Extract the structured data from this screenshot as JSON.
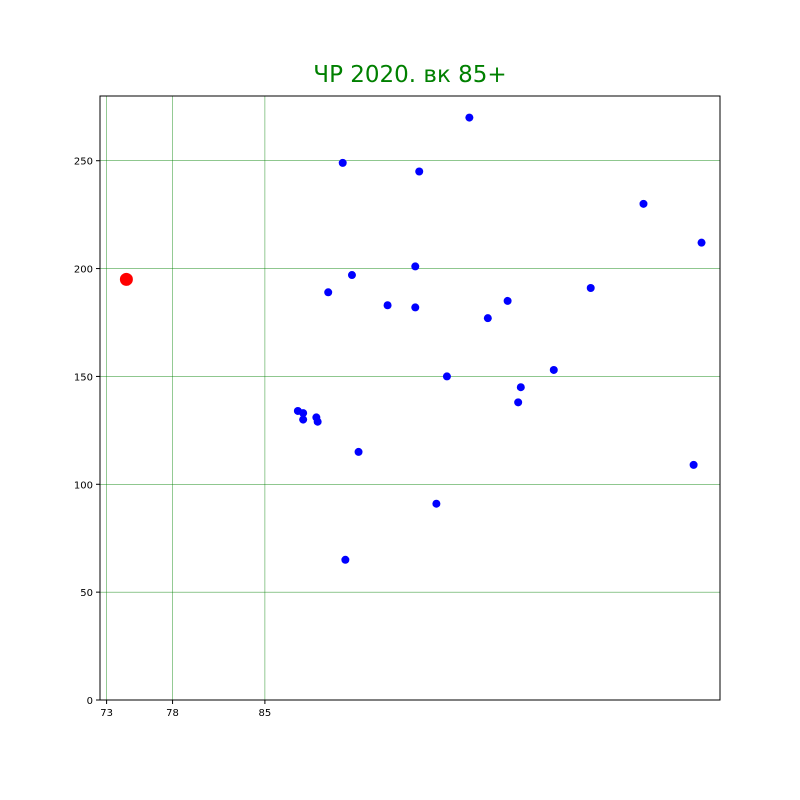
{
  "chart_data": {
    "type": "scatter",
    "title": "ЧР 2020. вк 85+",
    "xlabel": "",
    "ylabel": "",
    "xlim": [
      72.5,
      119.5
    ],
    "ylim": [
      0,
      280
    ],
    "x_ticks": [
      73,
      78,
      85
    ],
    "y_ticks": [
      0,
      50,
      100,
      150,
      200,
      250
    ],
    "grid": true,
    "colors": {
      "title": "#008000",
      "grid": "#008000",
      "series": "#0000ff",
      "highlight": "#ff0000"
    },
    "series": [
      {
        "color": "#0000ff",
        "points": [
          {
            "x": 87.5,
            "y": 134
          },
          {
            "x": 87.9,
            "y": 133
          },
          {
            "x": 87.9,
            "y": 130
          },
          {
            "x": 88.9,
            "y": 131
          },
          {
            "x": 89.0,
            "y": 129
          },
          {
            "x": 89.8,
            "y": 189
          },
          {
            "x": 90.9,
            "y": 249
          },
          {
            "x": 91.1,
            "y": 65
          },
          {
            "x": 91.6,
            "y": 197
          },
          {
            "x": 92.1,
            "y": 115
          },
          {
            "x": 94.3,
            "y": 183
          },
          {
            "x": 96.4,
            "y": 201
          },
          {
            "x": 96.4,
            "y": 182
          },
          {
            "x": 96.7,
            "y": 245
          },
          {
            "x": 98.0,
            "y": 91
          },
          {
            "x": 98.8,
            "y": 150
          },
          {
            "x": 100.5,
            "y": 270
          },
          {
            "x": 101.9,
            "y": 177
          },
          {
            "x": 103.4,
            "y": 185
          },
          {
            "x": 104.2,
            "y": 138
          },
          {
            "x": 104.4,
            "y": 145
          },
          {
            "x": 106.9,
            "y": 153
          },
          {
            "x": 109.7,
            "y": 191
          },
          {
            "x": 113.7,
            "y": 230
          },
          {
            "x": 117.5,
            "y": 109
          },
          {
            "x": 118.1,
            "y": 212
          }
        ]
      },
      {
        "color": "#ff0000",
        "points": [
          {
            "x": 74.5,
            "y": 195
          }
        ]
      }
    ]
  }
}
